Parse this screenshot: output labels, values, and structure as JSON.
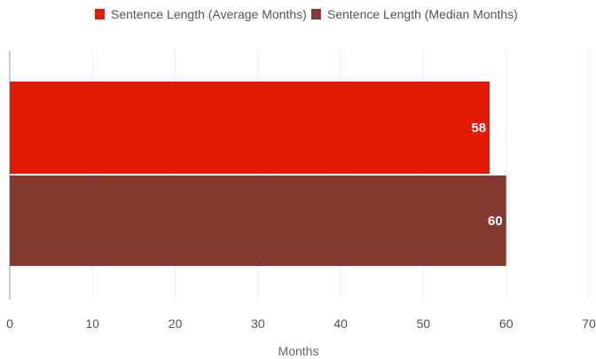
{
  "chart_data": {
    "type": "bar",
    "orientation": "horizontal",
    "categories": [
      ""
    ],
    "series": [
      {
        "name": "Sentence Length (Average Months)",
        "values": [
          58
        ],
        "color": "#e31a04"
      },
      {
        "name": "Sentence Length (Median Months)",
        "values": [
          60
        ],
        "color": "#843a2f"
      }
    ],
    "xlabel": "Months",
    "ylabel": "",
    "xlim": [
      0,
      70
    ],
    "xticks": [
      0,
      10,
      20,
      30,
      40,
      50,
      60,
      70
    ],
    "grid": true,
    "legend_position": "top"
  }
}
